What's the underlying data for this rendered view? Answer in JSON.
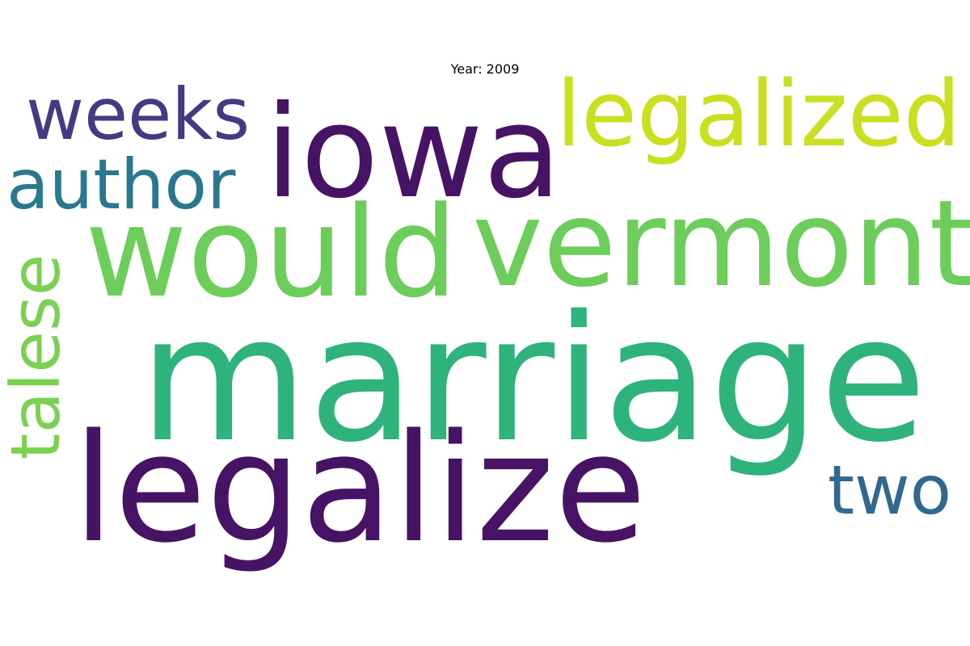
{
  "title": "Year: 2009",
  "words": [
    {
      "id": "marriage",
      "text": "marriage",
      "color": "#2eb37c"
    },
    {
      "id": "legalize",
      "text": "legalize",
      "color": "#471365"
    },
    {
      "id": "would",
      "text": "would",
      "color": "#6ccd5a"
    },
    {
      "id": "vermont",
      "text": "vermont",
      "color": "#6ccd5a"
    },
    {
      "id": "iowa",
      "text": "iowa",
      "color": "#471365"
    },
    {
      "id": "legalized",
      "text": "legalized",
      "color": "#c8e020"
    },
    {
      "id": "weeks",
      "text": "weeks",
      "color": "#443a83"
    },
    {
      "id": "author",
      "text": "author",
      "color": "#2a788e"
    },
    {
      "id": "two",
      "text": "two",
      "color": "#31688e"
    },
    {
      "id": "talese",
      "text": "talese",
      "color": "#7ad151",
      "rotated": true
    }
  ]
}
